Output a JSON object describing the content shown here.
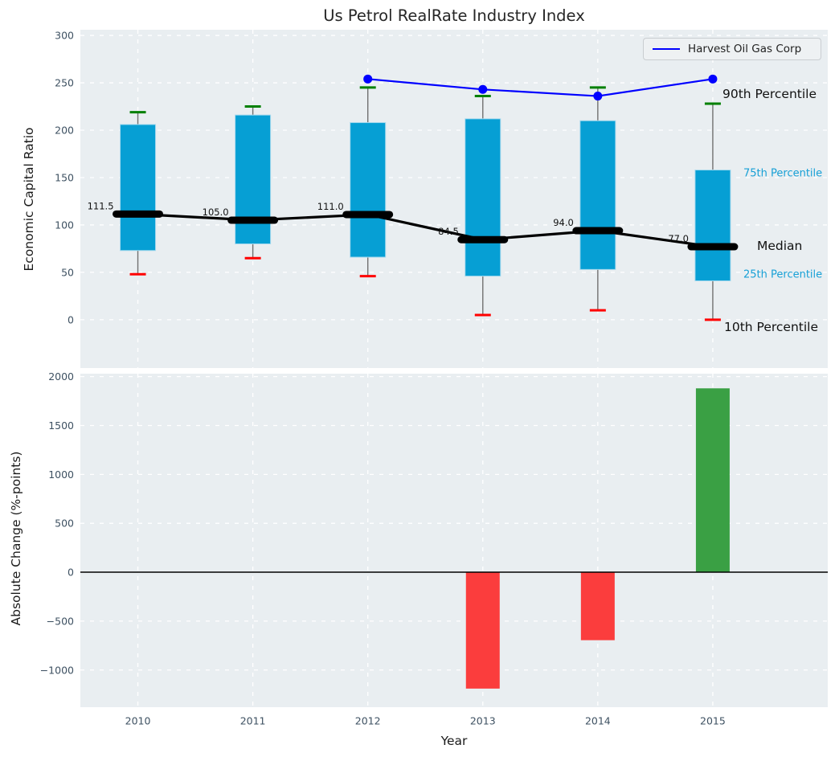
{
  "title": "Us Petrol RealRate Industry Index",
  "chart_data": [
    {
      "type": "box",
      "title": "Us Petrol RealRate Industry Index",
      "ylabel": "Economic Capital Ratio",
      "categories": [
        "2010",
        "2011",
        "2012",
        "2013",
        "2014",
        "2015"
      ],
      "ylim": [
        -51,
        306
      ],
      "yticks": {
        "values": [
          0,
          50,
          100,
          150,
          200,
          250,
          300
        ],
        "labels": [
          "0",
          "50",
          "100",
          "150",
          "200",
          "250",
          "300"
        ]
      },
      "grid": true,
      "legend_position": "upper right",
      "series": {
        "p90": [
          219,
          225,
          245,
          236,
          245,
          228
        ],
        "p75": [
          206,
          216,
          208,
          212,
          210,
          158
        ],
        "median": [
          111.5,
          105.0,
          111.0,
          84.5,
          94.0,
          77.0
        ],
        "p25": [
          73,
          80,
          66,
          46,
          53,
          41
        ],
        "p10": [
          48,
          65,
          46,
          5,
          10,
          0
        ]
      },
      "median_labels": [
        "111.5",
        "105.0",
        "111.0",
        "84.5",
        "94.0",
        "77.0"
      ],
      "company_line": {
        "name": "Harvest Oil Gas Corp",
        "categories": [
          "2012",
          "2013",
          "2014",
          "2015"
        ],
        "values": [
          254,
          243,
          236,
          254
        ]
      },
      "annotations": {
        "p90": "90th Percentile",
        "p75": "75th Percentile",
        "median": "Median",
        "p25": "25th Percentile",
        "p10": "10th Percentile"
      },
      "colors": {
        "box_fill": "#069fd4",
        "box_edge": "#a6d9ee",
        "whisker": "#707070",
        "cap_top": "#008000",
        "cap_bottom": "#ff0000",
        "median": "#000000",
        "company_line": "#0000ff",
        "annotation_accent": "#17a0d6",
        "annotation_dark": "#111111"
      }
    },
    {
      "type": "bar",
      "ylabel": "Absolute Change (%-points)",
      "xlabel": "Year",
      "categories": [
        "2010",
        "2011",
        "2012",
        "2013",
        "2014",
        "2015"
      ],
      "values": [
        null,
        null,
        null,
        -1190,
        -695,
        1880
      ],
      "ylim": [
        -1380,
        2030
      ],
      "yticks": {
        "values": [
          2000,
          1500,
          1000,
          500,
          0,
          -500,
          -1000
        ],
        "labels": [
          "2000",
          "1500",
          "1000",
          "500",
          "0",
          "−500",
          "−1000"
        ]
      },
      "grid": true,
      "colors": {
        "positive": "#3aa044",
        "negative": "#fb3d3d",
        "zero_line": "#000000"
      }
    }
  ],
  "style": {
    "plot_bg": "#e9eef1",
    "grid_color": "#ffffff",
    "tick_color": "#3e5162",
    "text_color": "#1a1a1a"
  }
}
